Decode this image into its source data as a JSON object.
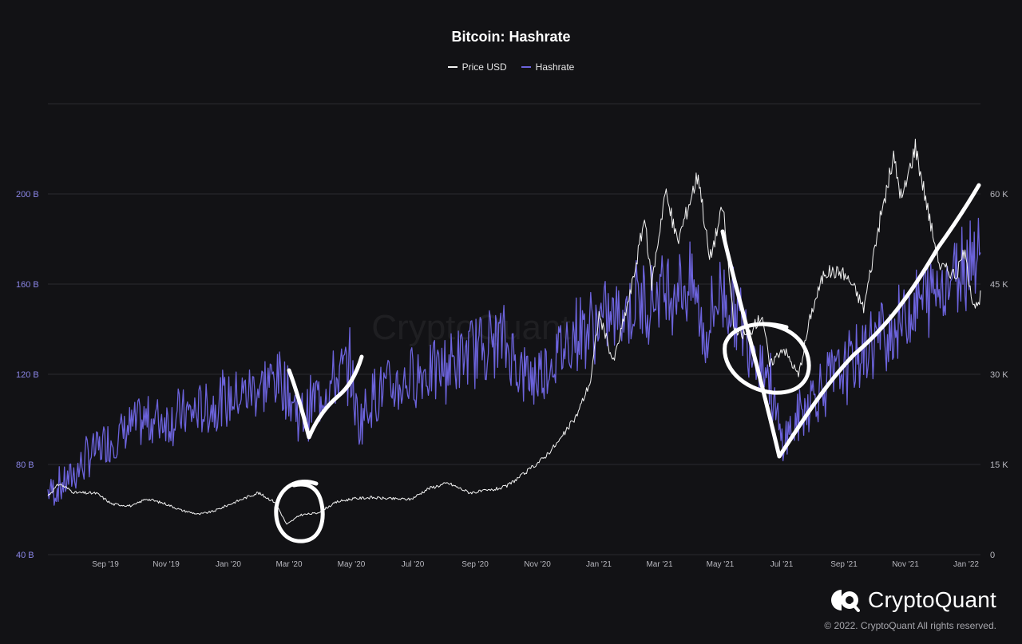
{
  "colors": {
    "background": "#121215",
    "price": "#f2f2f2",
    "hashrate": "#6c63dc",
    "grid": "#2a2a30",
    "left_axis_text": "#8b86e6",
    "right_axis_text": "#b8b8bf",
    "x_axis_text": "#b8b8bf",
    "annotation": "#ffffff"
  },
  "watermark": "CryptoQuant",
  "brand": {
    "name": "CryptoQuant",
    "logo_icon": "cryptoquant-logo-icon"
  },
  "copyright": "© 2022. CryptoQuant All rights reserved.",
  "chart_data": {
    "type": "line",
    "title": "Bitcoin: Hashrate",
    "legend": {
      "position": "top-center",
      "entries": [
        "Price USD",
        "Hashrate"
      ]
    },
    "x_ticks": [
      "Sep '19",
      "Nov '19",
      "Jan '20",
      "Mar '20",
      "May '20",
      "Jul '20",
      "Sep '20",
      "Nov '20",
      "Jan '21",
      "Mar '21",
      "May '21",
      "Jul '21",
      "Sep '21",
      "Nov '21",
      "Jan '22"
    ],
    "x_range": [
      "2019-07-25",
      "2022-01-12"
    ],
    "y_left": {
      "label": "",
      "ticks": [
        "40 B",
        "80 B",
        "120 B",
        "160 B",
        "200 B"
      ],
      "tick_values": [
        40,
        80,
        120,
        160,
        200
      ],
      "range": [
        40,
        240
      ],
      "unit": "B"
    },
    "y_right": {
      "label": "",
      "ticks": [
        "0",
        "15 K",
        "30 K",
        "45 K",
        "60 K"
      ],
      "tick_values": [
        0,
        15,
        30,
        45,
        60
      ],
      "range": [
        0,
        75
      ],
      "unit": "K"
    },
    "grid": true,
    "series": [
      {
        "name": "Price USD",
        "axis": "right",
        "points": [
          [
            "2019-07-25",
            9.8
          ],
          [
            "2019-08-05",
            11.8
          ],
          [
            "2019-08-20",
            10.3
          ],
          [
            "2019-09-10",
            10.2
          ],
          [
            "2019-09-25",
            8.4
          ],
          [
            "2019-10-15",
            8.1
          ],
          [
            "2019-10-28",
            9.3
          ],
          [
            "2019-11-15",
            8.5
          ],
          [
            "2019-12-01",
            7.4
          ],
          [
            "2019-12-18",
            6.7
          ],
          [
            "2020-01-01",
            7.2
          ],
          [
            "2020-01-20",
            8.6
          ],
          [
            "2020-02-13",
            10.3
          ],
          [
            "2020-03-01",
            8.7
          ],
          [
            "2020-03-12",
            5.0
          ],
          [
            "2020-03-25",
            6.6
          ],
          [
            "2020-04-10",
            6.9
          ],
          [
            "2020-04-30",
            8.8
          ],
          [
            "2020-05-15",
            9.3
          ],
          [
            "2020-06-01",
            9.5
          ],
          [
            "2020-06-20",
            9.3
          ],
          [
            "2020-07-10",
            9.2
          ],
          [
            "2020-07-27",
            11.0
          ],
          [
            "2020-08-15",
            11.9
          ],
          [
            "2020-09-05",
            10.3
          ],
          [
            "2020-09-25",
            10.7
          ],
          [
            "2020-10-10",
            11.3
          ],
          [
            "2020-10-28",
            13.5
          ],
          [
            "2020-11-15",
            16.0
          ],
          [
            "2020-12-01",
            19.0
          ],
          [
            "2020-12-17",
            23.0
          ],
          [
            "2020-12-31",
            29.0
          ],
          [
            "2021-01-08",
            40.0
          ],
          [
            "2021-01-22",
            32.0
          ],
          [
            "2021-02-08",
            44.0
          ],
          [
            "2021-02-21",
            56.0
          ],
          [
            "2021-02-28",
            45.0
          ],
          [
            "2021-03-13",
            60.5
          ],
          [
            "2021-03-25",
            52.0
          ],
          [
            "2021-04-14",
            63.5
          ],
          [
            "2021-04-25",
            49.0
          ],
          [
            "2021-05-08",
            58.0
          ],
          [
            "2021-05-19",
            37.0
          ],
          [
            "2021-06-01",
            36.5
          ],
          [
            "2021-06-15",
            40.0
          ],
          [
            "2021-06-22",
            31.5
          ],
          [
            "2021-07-05",
            34.5
          ],
          [
            "2021-07-20",
            29.8
          ],
          [
            "2021-08-01",
            40.0
          ],
          [
            "2021-08-14",
            47.0
          ],
          [
            "2021-08-31",
            47.0
          ],
          [
            "2021-09-10",
            45.0
          ],
          [
            "2021-09-21",
            41.0
          ],
          [
            "2021-10-06",
            55.0
          ],
          [
            "2021-10-20",
            66.0
          ],
          [
            "2021-10-28",
            59.0
          ],
          [
            "2021-11-10",
            68.0
          ],
          [
            "2021-11-26",
            54.0
          ],
          [
            "2021-12-04",
            48.0
          ],
          [
            "2021-12-20",
            46.5
          ],
          [
            "2021-12-27",
            50.5
          ],
          [
            "2022-01-05",
            42.0
          ],
          [
            "2022-01-10",
            41.0
          ],
          [
            "2022-01-12",
            43.0
          ]
        ]
      },
      {
        "name": "Hashrate",
        "axis": "left",
        "points": [
          [
            "2019-07-25",
            68
          ],
          [
            "2019-08-05",
            70
          ],
          [
            "2019-08-20",
            76
          ],
          [
            "2019-09-05",
            85
          ],
          [
            "2019-09-25",
            91
          ],
          [
            "2019-10-15",
            97
          ],
          [
            "2019-11-05",
            100
          ],
          [
            "2019-11-25",
            101
          ],
          [
            "2019-12-15",
            103
          ],
          [
            "2020-01-05",
            107
          ],
          [
            "2020-01-25",
            110
          ],
          [
            "2020-02-15",
            115
          ],
          [
            "2020-03-05",
            119
          ],
          [
            "2020-03-12",
            113
          ],
          [
            "2020-03-26",
            100
          ],
          [
            "2020-04-10",
            110
          ],
          [
            "2020-04-30",
            118
          ],
          [
            "2020-05-12",
            124
          ],
          [
            "2020-05-20",
            98
          ],
          [
            "2020-06-05",
            112
          ],
          [
            "2020-06-25",
            114
          ],
          [
            "2020-07-15",
            120
          ],
          [
            "2020-08-05",
            122
          ],
          [
            "2020-08-25",
            126
          ],
          [
            "2020-09-15",
            133
          ],
          [
            "2020-10-05",
            136
          ],
          [
            "2020-10-25",
            122
          ],
          [
            "2020-11-05",
            118
          ],
          [
            "2020-11-25",
            127
          ],
          [
            "2020-12-15",
            138
          ],
          [
            "2021-01-05",
            142
          ],
          [
            "2021-01-25",
            146
          ],
          [
            "2021-02-15",
            152
          ],
          [
            "2021-03-05",
            156
          ],
          [
            "2021-03-25",
            160
          ],
          [
            "2021-04-10",
            158
          ],
          [
            "2021-04-20",
            135
          ],
          [
            "2021-05-05",
            158
          ],
          [
            "2021-05-20",
            148
          ],
          [
            "2021-06-05",
            134
          ],
          [
            "2021-06-20",
            122
          ],
          [
            "2021-07-03",
            90
          ],
          [
            "2021-07-15",
            96
          ],
          [
            "2021-08-01",
            110
          ],
          [
            "2021-08-20",
            118
          ],
          [
            "2021-09-10",
            125
          ],
          [
            "2021-10-01",
            135
          ],
          [
            "2021-10-20",
            140
          ],
          [
            "2021-11-10",
            150
          ],
          [
            "2021-11-30",
            158
          ],
          [
            "2021-12-20",
            166
          ],
          [
            "2022-01-05",
            176
          ],
          [
            "2022-01-12",
            180
          ]
        ]
      }
    ]
  }
}
